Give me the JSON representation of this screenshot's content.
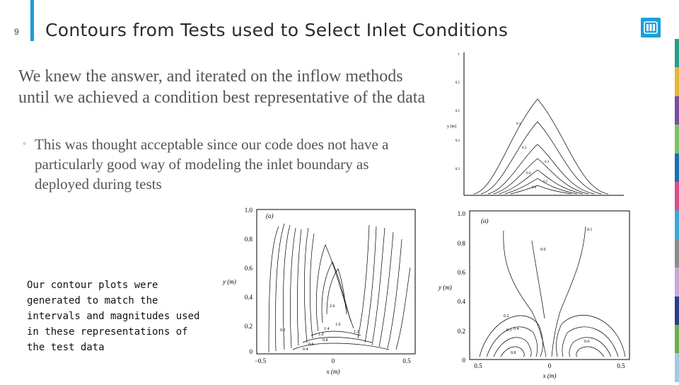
{
  "slide": {
    "number": "9",
    "title": "Contours from Tests used to Select Inlet Conditions"
  },
  "body": {
    "main_text": "We knew the answer, and iterated on the inflow methods until we achieved a condition best representative of the data",
    "bullet": "This was thought acceptable since our code does not have a particularly good way of modeling the inlet boundary as deployed during tests",
    "note": "Our contour plots were generated to match the intervals and magnitudes used in these representations of the test data"
  },
  "figures": {
    "left": {
      "panel_label": "(a)",
      "xlabel": "x (m)",
      "ylabel": "y (m)",
      "xticks": [
        "−0.5",
        "0",
        "0.5"
      ],
      "yticks": [
        "0",
        "0.2",
        "0.4",
        "0.6",
        "0.8",
        "1.0"
      ],
      "contour_labels": [
        "2.6",
        "1.6",
        "1.4",
        "1.2",
        "1.0",
        "0.8",
        "0.6",
        "0.4",
        "0.2"
      ]
    },
    "right": {
      "panel_label": "(a)",
      "xlabel": "x (m)",
      "ylabel": "y (m)",
      "xticks": [
        "0.5",
        "0",
        "0.5"
      ],
      "yticks": [
        "0",
        "0.2",
        "0.4",
        "0.6",
        "0.8",
        "1.0"
      ],
      "contour_labels": [
        "0.1",
        "0.0",
        "0.2",
        "0.3",
        "0.4",
        "0.6",
        "0.8"
      ]
    },
    "top": {
      "ylabel": "y (m)",
      "yticks": [
        "1",
        "0.5",
        "0.5",
        "0.3",
        "0.2",
        "0.2"
      ],
      "contour_labels": [
        "0.1",
        "0.2",
        "0.3",
        "0.4",
        "0.5",
        "0.6",
        "0.7"
      ]
    }
  },
  "colors": {
    "accent": "#1e9ad6",
    "logo_bg": "#1aa0d9",
    "stripe": [
      "#2a9c8c",
      "#e0b83c",
      "#7b4d9e",
      "#7ac36a",
      "#1b6fb0",
      "#d94f8a",
      "#3ea7d8",
      "#8c8c8c",
      "#c9a8d8",
      "#2c3e8c",
      "#6ab04c",
      "#a3c8e6"
    ]
  }
}
